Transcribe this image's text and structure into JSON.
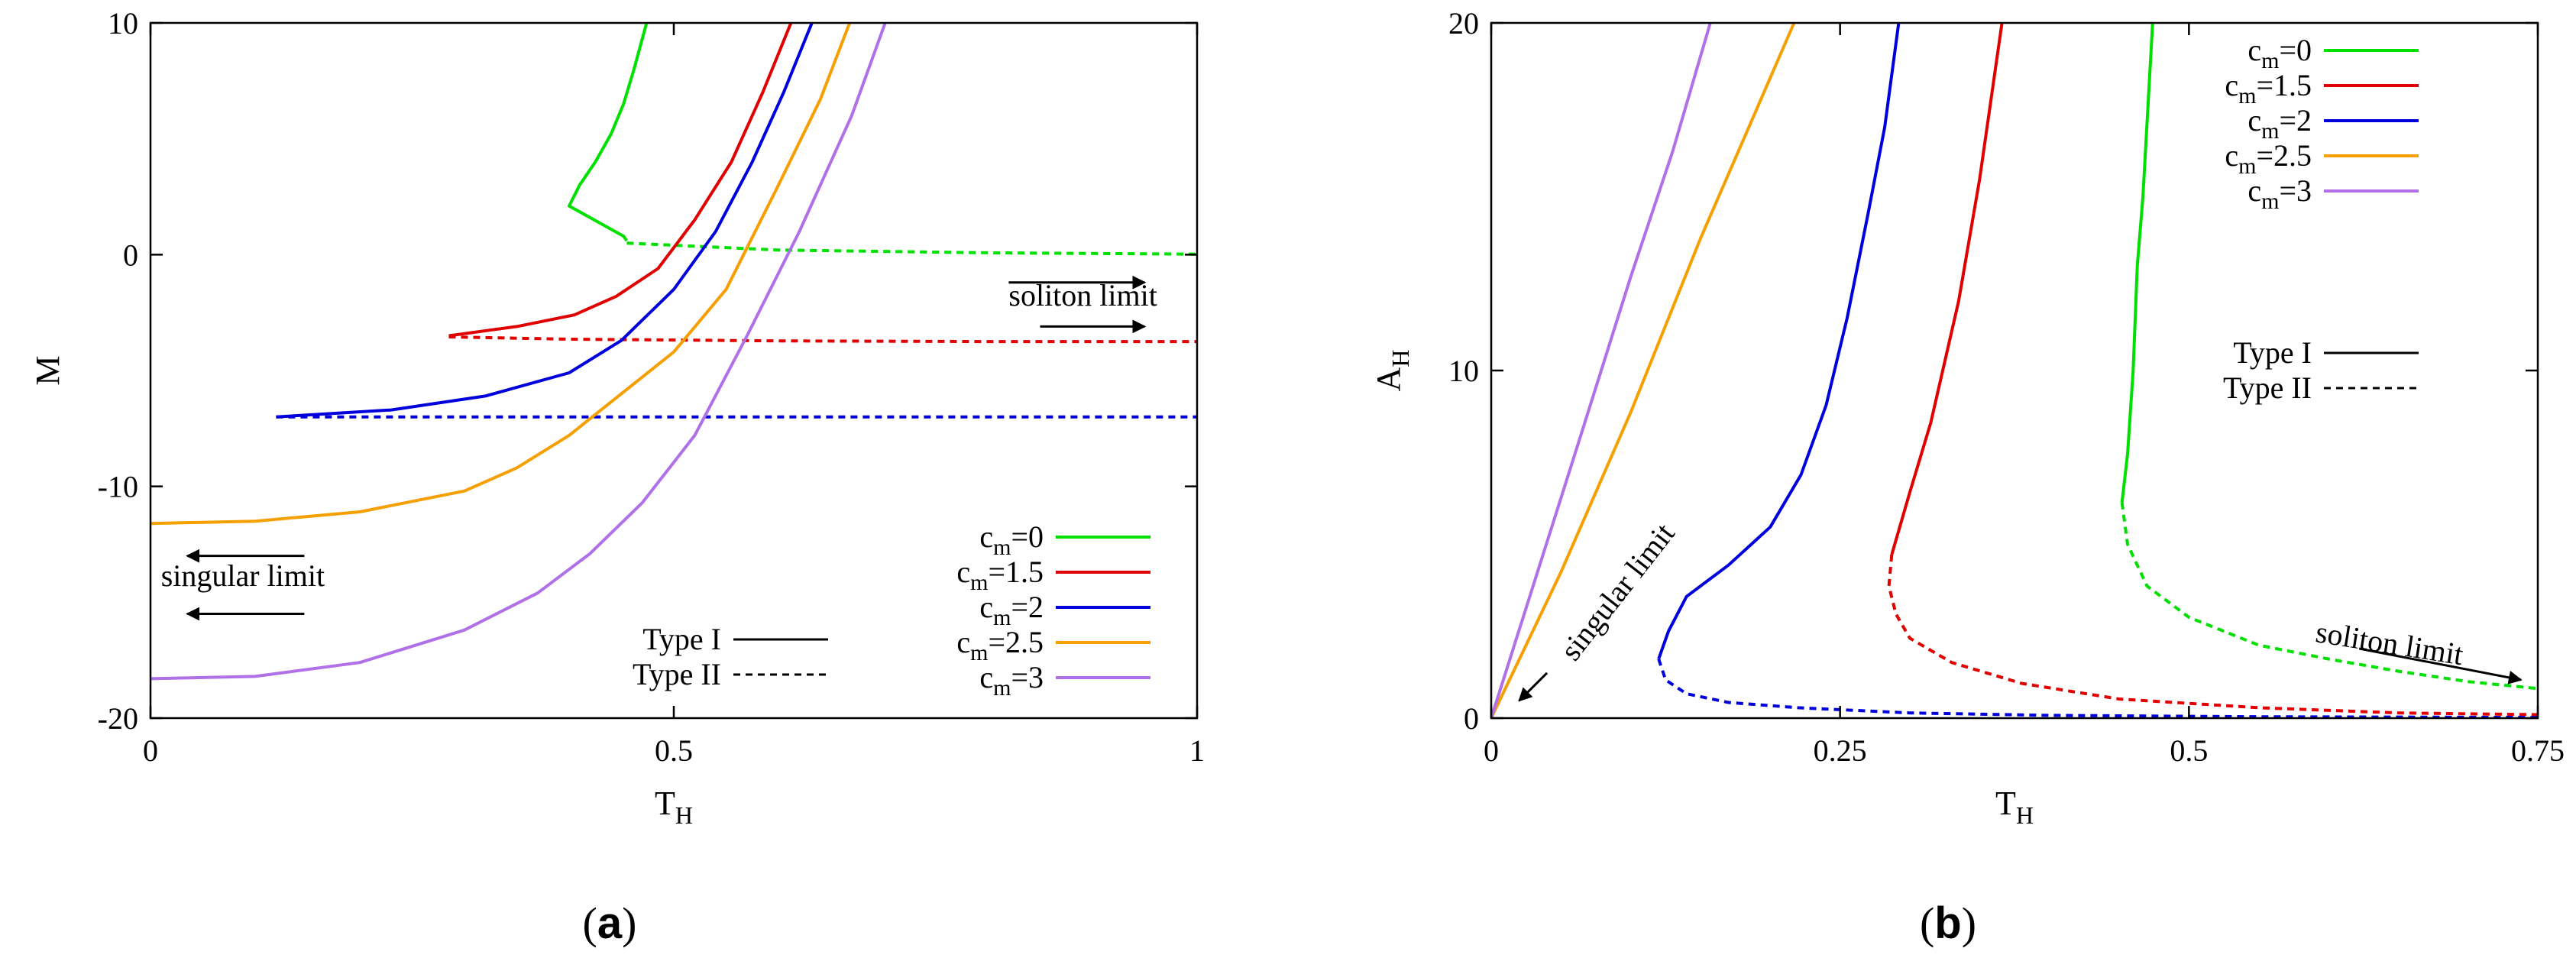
{
  "figure": {
    "panels": [
      {
        "id": "a",
        "caption_open": "(",
        "caption_letter": "a",
        "caption_close": ")"
      },
      {
        "id": "b",
        "caption_open": "(",
        "caption_letter": "b",
        "caption_close": ")"
      }
    ]
  },
  "chart_data": [
    {
      "type": "line",
      "panel": "a",
      "xlabel": "T",
      "xlabel_sub": "H",
      "ylabel": "M",
      "ylabel_sub": "",
      "xlim": [
        0,
        1
      ],
      "ylim": [
        -20,
        10
      ],
      "xticks": [
        0,
        0.5,
        1
      ],
      "xtick_labels": [
        "0",
        "0.5",
        "1"
      ],
      "yticks": [
        -20,
        -10,
        0,
        10
      ],
      "ytick_labels": [
        "-20",
        "-10",
        "0",
        "10"
      ],
      "grid": false,
      "legend": {
        "placement": "bottom-right",
        "series_labels": [
          {
            "base": "c",
            "sub": "m",
            "rest": "=0",
            "color": "#00e000"
          },
          {
            "base": "c",
            "sub": "m",
            "rest": "=1.5",
            "color": "#e00000"
          },
          {
            "base": "c",
            "sub": "m",
            "rest": "=2",
            "color": "#0000dd"
          },
          {
            "base": "c",
            "sub": "m",
            "rest": "=2.5",
            "color": "#f5a000"
          },
          {
            "base": "c",
            "sub": "m",
            "rest": "=3",
            "color": "#b070e8"
          }
        ],
        "style_labels": [
          {
            "text": "Type I",
            "dash": "solid"
          },
          {
            "text": "Type II",
            "dash": "dashed"
          }
        ]
      },
      "annotations": [
        {
          "text": "soliton limit",
          "arrows": [
            {
              "from": [
                0.82,
                -1.2
              ],
              "to": [
                0.95,
                -1.2
              ]
            },
            {
              "from": [
                0.85,
                -3.1
              ],
              "to": [
                0.95,
                -3.1
              ]
            }
          ],
          "text_at": [
            0.82,
            -2.2
          ]
        },
        {
          "text": "singular limit",
          "arrows": [
            {
              "from": [
                0.147,
                -13
              ],
              "to": [
                0.035,
                -13
              ]
            },
            {
              "from": [
                0.147,
                -15.5
              ],
              "to": [
                0.035,
                -15.5
              ]
            }
          ],
          "text_at": [
            0.01,
            -14.3
          ]
        }
      ],
      "series": [
        {
          "color": "#00e000",
          "dash": "solid",
          "points": [
            [
              0.474,
              10
            ],
            [
              0.462,
              8
            ],
            [
              0.452,
              6.5
            ],
            [
              0.44,
              5.2
            ],
            [
              0.425,
              4
            ],
            [
              0.41,
              3
            ],
            [
              0.4,
              2.1
            ],
            [
              0.452,
              0.8
            ],
            [
              0.455,
              0.6
            ]
          ]
        },
        {
          "color": "#00e000",
          "dash": "dashed",
          "points": [
            [
              0.455,
              0.5
            ],
            [
              0.6,
              0.2
            ],
            [
              0.8,
              0.08
            ],
            [
              1.0,
              0.02
            ]
          ]
        },
        {
          "color": "#e00000",
          "dash": "solid",
          "points": [
            [
              0.612,
              10
            ],
            [
              0.585,
              7
            ],
            [
              0.555,
              4
            ],
            [
              0.52,
              1.5
            ],
            [
              0.485,
              -0.6
            ],
            [
              0.445,
              -1.8
            ],
            [
              0.405,
              -2.6
            ],
            [
              0.35,
              -3.1
            ],
            [
              0.285,
              -3.5
            ]
          ]
        },
        {
          "color": "#e00000",
          "dash": "dashed",
          "points": [
            [
              0.285,
              -3.55
            ],
            [
              0.4,
              -3.65
            ],
            [
              0.6,
              -3.72
            ],
            [
              0.8,
              -3.75
            ],
            [
              1.0,
              -3.75
            ]
          ]
        },
        {
          "color": "#0000dd",
          "dash": "solid",
          "points": [
            [
              0.632,
              10
            ],
            [
              0.605,
              7
            ],
            [
              0.575,
              4
            ],
            [
              0.54,
              1
            ],
            [
              0.5,
              -1.5
            ],
            [
              0.45,
              -3.7
            ],
            [
              0.4,
              -5.1
            ],
            [
              0.32,
              -6.1
            ],
            [
              0.23,
              -6.7
            ],
            [
              0.12,
              -7
            ]
          ]
        },
        {
          "color": "#0000dd",
          "dash": "dashed",
          "points": [
            [
              0.12,
              -7
            ],
            [
              0.4,
              -7
            ],
            [
              0.7,
              -7
            ],
            [
              1.0,
              -7
            ]
          ]
        },
        {
          "color": "#f5a000",
          "dash": "solid",
          "points": [
            [
              0.668,
              10
            ],
            [
              0.64,
              6.7
            ],
            [
              0.6,
              3
            ],
            [
              0.55,
              -1.5
            ],
            [
              0.5,
              -4.2
            ],
            [
              0.45,
              -6
            ],
            [
              0.4,
              -7.8
            ],
            [
              0.35,
              -9.2
            ],
            [
              0.3,
              -10.2
            ],
            [
              0.2,
              -11.1
            ],
            [
              0.1,
              -11.5
            ],
            [
              0.0,
              -11.6
            ]
          ]
        },
        {
          "color": "#b070e8",
          "dash": "solid",
          "points": [
            [
              0.702,
              10
            ],
            [
              0.67,
              6
            ],
            [
              0.62,
              1
            ],
            [
              0.57,
              -3.5
            ],
            [
              0.52,
              -7.8
            ],
            [
              0.47,
              -10.7
            ],
            [
              0.42,
              -12.9
            ],
            [
              0.37,
              -14.6
            ],
            [
              0.3,
              -16.2
            ],
            [
              0.2,
              -17.6
            ],
            [
              0.1,
              -18.2
            ],
            [
              0.0,
              -18.3
            ]
          ]
        }
      ]
    },
    {
      "type": "line",
      "panel": "b",
      "xlabel": "T",
      "xlabel_sub": "H",
      "ylabel": "A",
      "ylabel_sub": "H",
      "xlim": [
        0,
        0.75
      ],
      "ylim": [
        0,
        20
      ],
      "xticks": [
        0,
        0.25,
        0.5,
        0.75
      ],
      "xtick_labels": [
        "0",
        "0.25",
        "0.5",
        "0.75"
      ],
      "yticks": [
        0,
        10,
        20
      ],
      "ytick_labels": [
        "0",
        "10",
        "20"
      ],
      "grid": false,
      "legend": {
        "placement": "top-right",
        "series_labels": [
          {
            "base": "c",
            "sub": "m",
            "rest": "=0",
            "color": "#00e000"
          },
          {
            "base": "c",
            "sub": "m",
            "rest": "=1.5",
            "color": "#e00000"
          },
          {
            "base": "c",
            "sub": "m",
            "rest": "=2",
            "color": "#0000dd"
          },
          {
            "base": "c",
            "sub": "m",
            "rest": "=2.5",
            "color": "#f5a000"
          },
          {
            "base": "c",
            "sub": "m",
            "rest": "=3",
            "color": "#b070e8"
          }
        ],
        "style_labels": [
          {
            "text": "Type I",
            "dash": "solid"
          },
          {
            "text": "Type II",
            "dash": "dashed"
          }
        ]
      },
      "annotations": [
        {
          "text": "soliton limit",
          "arrows": [
            {
              "from": [
                0.622,
                2.0
              ],
              "to": [
                0.738,
                1.1
              ]
            }
          ],
          "text_at": [
            0.59,
            2.2
          ],
          "rotate": 9
        },
        {
          "text": "singular limit",
          "arrows": [
            {
              "from": [
                0.04,
                1.3
              ],
              "to": [
                0.02,
                0.5
              ]
            }
          ],
          "text_at": [
            0.06,
            1.6
          ],
          "rotate": -52
        }
      ],
      "series": [
        {
          "color": "#00e000",
          "dash": "solid",
          "points": [
            [
              0.474,
              20
            ],
            [
              0.467,
              15
            ],
            [
              0.463,
              13
            ],
            [
              0.46,
              10
            ],
            [
              0.456,
              7.6
            ],
            [
              0.452,
              6.2
            ]
          ]
        },
        {
          "color": "#00e000",
          "dash": "dashed",
          "points": [
            [
              0.452,
              6.2
            ],
            [
              0.456,
              5
            ],
            [
              0.47,
              3.8
            ],
            [
              0.5,
              2.9
            ],
            [
              0.55,
              2.1
            ],
            [
              0.6,
              1.7
            ],
            [
              0.65,
              1.35
            ],
            [
              0.7,
              1.05
            ],
            [
              0.75,
              0.85
            ]
          ]
        },
        {
          "color": "#e00000",
          "dash": "solid",
          "points": [
            [
              0.366,
              20
            ],
            [
              0.35,
              15.5
            ],
            [
              0.335,
              12
            ],
            [
              0.315,
              8.5
            ],
            [
              0.3,
              6.5
            ],
            [
              0.287,
              4.7
            ]
          ]
        },
        {
          "color": "#e00000",
          "dash": "dashed",
          "points": [
            [
              0.287,
              4.7
            ],
            [
              0.285,
              3.8
            ],
            [
              0.29,
              3
            ],
            [
              0.3,
              2.3
            ],
            [
              0.33,
              1.6
            ],
            [
              0.38,
              1.0
            ],
            [
              0.45,
              0.55
            ],
            [
              0.55,
              0.3
            ],
            [
              0.65,
              0.15
            ],
            [
              0.75,
              0.1
            ]
          ]
        },
        {
          "color": "#0000dd",
          "dash": "solid",
          "points": [
            [
              0.292,
              20
            ],
            [
              0.282,
              17
            ],
            [
              0.27,
              14.5
            ],
            [
              0.255,
              11.5
            ],
            [
              0.24,
              9
            ],
            [
              0.222,
              7
            ],
            [
              0.2,
              5.5
            ],
            [
              0.17,
              4.4
            ],
            [
              0.14,
              3.5
            ],
            [
              0.127,
              2.5
            ],
            [
              0.12,
              1.7
            ]
          ]
        },
        {
          "color": "#0000dd",
          "dash": "dashed",
          "points": [
            [
              0.12,
              1.7
            ],
            [
              0.125,
              1.1
            ],
            [
              0.14,
              0.7
            ],
            [
              0.17,
              0.45
            ],
            [
              0.22,
              0.3
            ],
            [
              0.3,
              0.15
            ],
            [
              0.4,
              0.08
            ],
            [
              0.55,
              0.04
            ],
            [
              0.75,
              0.02
            ]
          ]
        },
        {
          "color": "#f5a000",
          "dash": "solid",
          "points": [
            [
              0.0,
              0.0
            ],
            [
              0.05,
              4.2
            ],
            [
              0.1,
              8.8
            ],
            [
              0.15,
              13.8
            ],
            [
              0.19,
              17.5
            ],
            [
              0.217,
              20
            ]
          ]
        },
        {
          "color": "#b070e8",
          "dash": "solid",
          "points": [
            [
              0.0,
              0.0
            ],
            [
              0.03,
              3.8
            ],
            [
              0.06,
              7.6
            ],
            [
              0.1,
              12.7
            ],
            [
              0.13,
              16.3
            ],
            [
              0.157,
              20
            ]
          ]
        }
      ]
    }
  ]
}
